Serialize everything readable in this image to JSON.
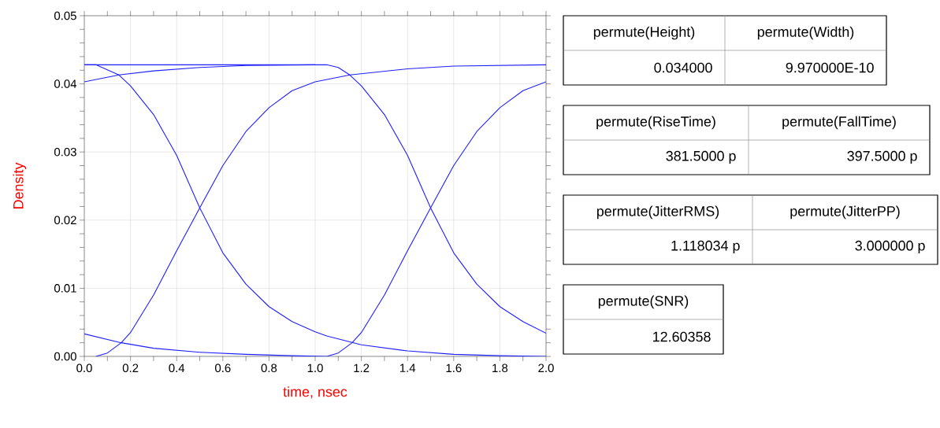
{
  "chart_data": [
    {
      "type": "line",
      "xlabel": "time, nsec",
      "ylabel": "Density",
      "xlim": [
        0,
        2
      ],
      "ylim": [
        0,
        0.05
      ],
      "xticks": [
        {
          "value": 0,
          "label": "0.0"
        },
        0.2,
        0.4,
        0.6,
        0.8,
        {
          "value": 1,
          "label": "1.0"
        },
        1.2,
        1.4,
        1.6,
        1.8,
        {
          "value": 2,
          "label": "2.0"
        }
      ],
      "yticks": [
        {
          "value": 0,
          "label": "0.00"
        },
        0.01,
        0.02,
        0.03,
        0.04,
        0.05
      ],
      "grid": true,
      "marker": "none",
      "line_style": "solid",
      "series": [
        {
          "color": "#1f1fff",
          "x": [
            0,
            0.05,
            0.15,
            0.2,
            0.3,
            0.4,
            0.5,
            0.6,
            0.7,
            0.8,
            0.9,
            1.0,
            1.05,
            1.2,
            1.4,
            1.6,
            1.8,
            2.0
          ],
          "values": [
            0.0428,
            0.0428,
            0.0413,
            0.0397,
            0.0355,
            0.0295,
            0.0218,
            0.0152,
            0.0106,
            0.0073,
            0.0051,
            0.0036,
            0.003,
            0.0017,
            0.0008,
            0.0003,
            0.0001,
            0.0
          ]
        },
        {
          "color": "#1f1fff",
          "x": [
            0,
            0.2,
            0.4,
            0.6,
            0.8,
            1.05,
            1.1,
            1.15,
            1.2,
            1.3,
            1.4,
            1.5,
            1.6,
            1.7,
            1.8,
            1.9,
            2.0
          ],
          "values": [
            0.0428,
            0.0428,
            0.0428,
            0.0428,
            0.0428,
            0.0428,
            0.0424,
            0.0413,
            0.0397,
            0.0355,
            0.0295,
            0.0218,
            0.0152,
            0.0106,
            0.0073,
            0.0051,
            0.0034
          ]
        },
        {
          "color": "#1f1fff",
          "x": [
            0,
            0.16,
            0.3,
            0.5,
            0.7,
            0.9,
            1.05,
            1.1,
            1.16,
            1.2,
            1.3,
            1.4,
            1.5,
            1.6,
            1.7,
            1.8,
            1.9,
            2.0
          ],
          "values": [
            0.0033,
            0.002,
            0.0012,
            0.0006,
            0.0003,
            0.0001,
            0.0,
            0.0005,
            0.002,
            0.0035,
            0.009,
            0.0155,
            0.0218,
            0.028,
            0.033,
            0.0365,
            0.039,
            0.0403
          ]
        },
        {
          "color": "#1f1fff",
          "x": [
            0.05,
            0.1,
            0.16,
            0.2,
            0.3,
            0.4,
            0.5,
            0.6,
            0.7,
            0.8,
            0.9,
            1.0,
            1.15,
            1.4,
            1.6,
            2.0
          ],
          "values": [
            0.0,
            0.0005,
            0.002,
            0.0035,
            0.009,
            0.0155,
            0.0218,
            0.028,
            0.033,
            0.0365,
            0.039,
            0.0403,
            0.0413,
            0.0422,
            0.0426,
            0.0428
          ]
        },
        {
          "color": "#1f1fff",
          "x": [
            0,
            0.15,
            0.3,
            0.5,
            0.7,
            1.0
          ],
          "values": [
            0.0403,
            0.0413,
            0.0419,
            0.0424,
            0.0427,
            0.0428
          ]
        }
      ]
    },
    {
      "type": "other",
      "annotations": [
        "permute(Height)",
        "permute(Width)",
        "0.034000",
        "9.970000E-10",
        "permute(RiseTime)",
        "permute(FallTime)",
        "381.5000 p",
        "397.5000 p",
        "permute(JitterRMS)",
        "permute(JitterPP)",
        "1.118034 p",
        "3.000000 p",
        "permute(SNR)",
        "12.60358"
      ]
    }
  ]
}
